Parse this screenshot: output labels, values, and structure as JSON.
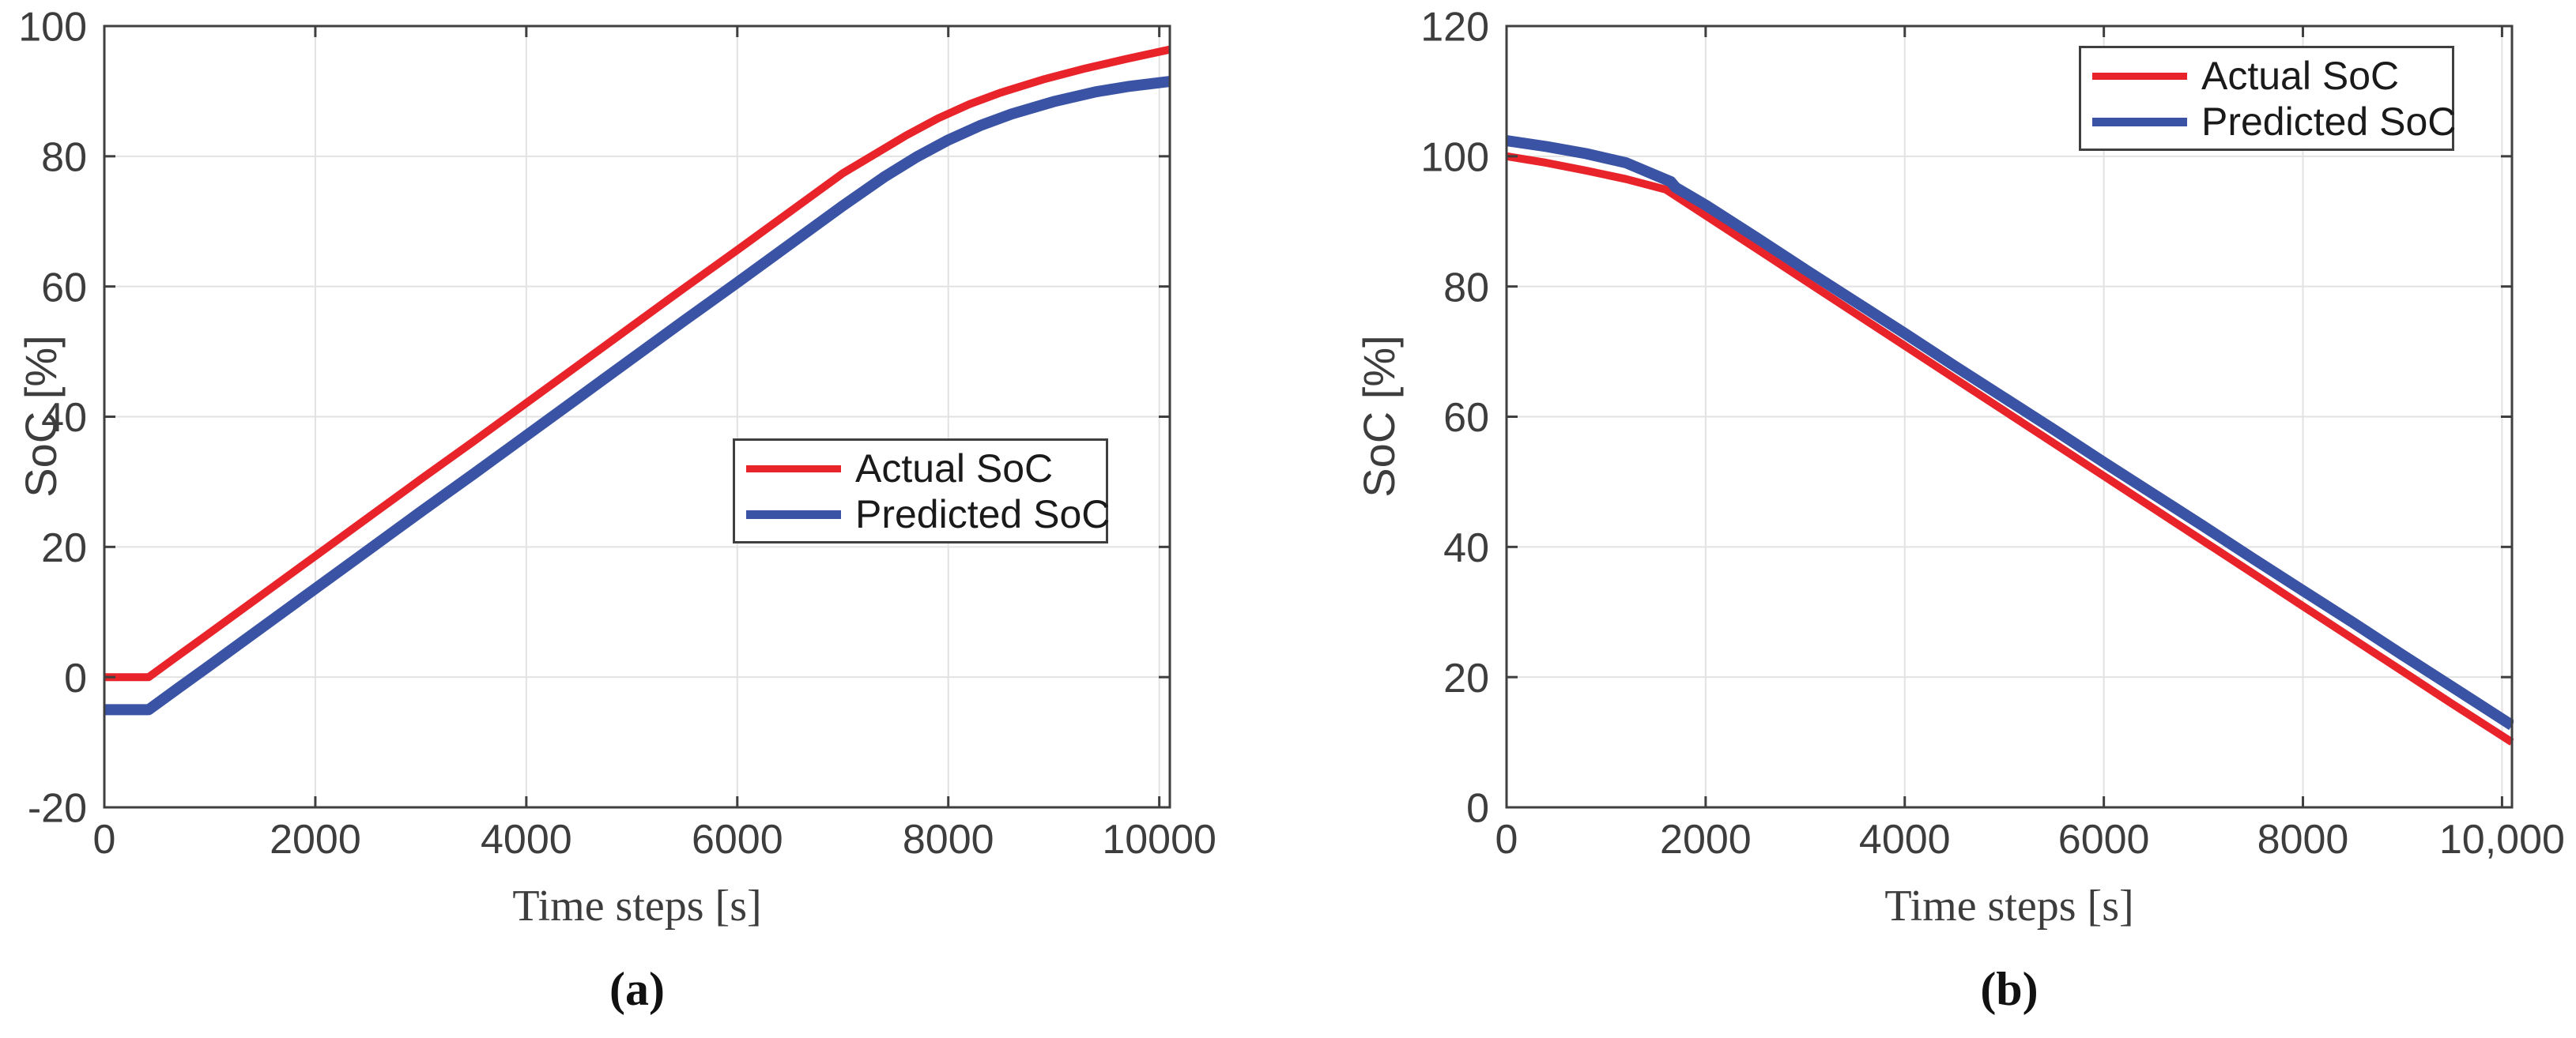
{
  "chart_data": [
    {
      "type": "line",
      "panel": "a",
      "caption": "(a)",
      "title": "",
      "xlabel": "Time steps [s]",
      "ylabel": "SoC [%]",
      "xlim": [
        0,
        10100
      ],
      "ylim": [
        -20,
        100
      ],
      "grid": true,
      "legend_position": "inside-middle-right",
      "xtick_values": [
        0,
        2000,
        4000,
        6000,
        8000,
        10000
      ],
      "xtick_labels": [
        "0",
        "2000",
        "4000",
        "6000",
        "8000",
        "10000"
      ],
      "ytick_values": [
        -20,
        0,
        20,
        40,
        60,
        80,
        100
      ],
      "ytick_labels": [
        "-20",
        "0",
        "20",
        "40",
        "60",
        "80",
        "100"
      ],
      "series": [
        {
          "name": "Actual SoC",
          "color": "#e8232a",
          "line_width": 10,
          "points": [
            [
              0,
              0
            ],
            [
              420,
              0
            ],
            [
              700,
              3.3
            ],
            [
              1000,
              6.8
            ],
            [
              1500,
              12.7
            ],
            [
              2000,
              18.6
            ],
            [
              2500,
              24.5
            ],
            [
              3000,
              30.4
            ],
            [
              3500,
              36.2
            ],
            [
              4000,
              42.1
            ],
            [
              4500,
              48.0
            ],
            [
              5000,
              53.9
            ],
            [
              5500,
              59.8
            ],
            [
              6000,
              65.6
            ],
            [
              6500,
              71.5
            ],
            [
              7000,
              77.4
            ],
            [
              7300,
              80.3
            ],
            [
              7600,
              83.2
            ],
            [
              7900,
              85.8
            ],
            [
              8200,
              88.0
            ],
            [
              8500,
              89.8
            ],
            [
              8900,
              91.8
            ],
            [
              9300,
              93.5
            ],
            [
              9700,
              95.0
            ],
            [
              10100,
              96.4
            ]
          ]
        },
        {
          "name": "Predicted SoC",
          "color": "#3a53a4",
          "line_width": 14,
          "points": [
            [
              0,
              -5
            ],
            [
              420,
              -5
            ],
            [
              700,
              -1.7
            ],
            [
              1000,
              1.8
            ],
            [
              1500,
              7.7
            ],
            [
              2000,
              13.6
            ],
            [
              2500,
              19.5
            ],
            [
              3000,
              25.4
            ],
            [
              3500,
              31.2
            ],
            [
              4000,
              37.1
            ],
            [
              4500,
              43.0
            ],
            [
              5000,
              48.9
            ],
            [
              5500,
              54.8
            ],
            [
              6000,
              60.6
            ],
            [
              6500,
              66.5
            ],
            [
              7000,
              72.4
            ],
            [
              7400,
              76.9
            ],
            [
              7700,
              79.9
            ],
            [
              8000,
              82.5
            ],
            [
              8300,
              84.7
            ],
            [
              8600,
              86.5
            ],
            [
              9000,
              88.4
            ],
            [
              9400,
              89.9
            ],
            [
              9700,
              90.7
            ],
            [
              10100,
              91.5
            ]
          ]
        }
      ]
    },
    {
      "type": "line",
      "panel": "b",
      "caption": "(b)",
      "title": "",
      "xlabel": "Time steps [s]",
      "ylabel": "SoC [%]",
      "xlim": [
        0,
        10100
      ],
      "ylim": [
        0,
        120
      ],
      "grid": true,
      "legend_position": "inside-top-right",
      "xtick_values": [
        0,
        2000,
        4000,
        6000,
        8000,
        10000
      ],
      "xtick_labels": [
        "0",
        "2000",
        "4000",
        "6000",
        "8000",
        "10,000"
      ],
      "ytick_values": [
        0,
        20,
        40,
        60,
        80,
        100,
        120
      ],
      "ytick_labels": [
        "0",
        "20",
        "40",
        "60",
        "80",
        "100",
        "120"
      ],
      "series": [
        {
          "name": "Actual SoC",
          "color": "#e8232a",
          "line_width": 10,
          "points": [
            [
              0,
              100
            ],
            [
              400,
              99.0
            ],
            [
              800,
              97.8
            ],
            [
              1200,
              96.5
            ],
            [
              1600,
              94.9
            ],
            [
              2000,
              90.9
            ],
            [
              2500,
              85.9
            ],
            [
              3000,
              80.9
            ],
            [
              3500,
              75.9
            ],
            [
              4000,
              70.9
            ],
            [
              4500,
              65.9
            ],
            [
              5000,
              60.9
            ],
            [
              5500,
              55.9
            ],
            [
              6000,
              50.9
            ],
            [
              6500,
              45.9
            ],
            [
              7000,
              40.9
            ],
            [
              7500,
              35.9
            ],
            [
              8000,
              30.9
            ],
            [
              8500,
              25.9
            ],
            [
              9000,
              20.9
            ],
            [
              9500,
              15.9
            ],
            [
              10100,
              10.0
            ]
          ]
        },
        {
          "name": "Predicted SoC",
          "color": "#3a53a4",
          "line_width": 14,
          "points": [
            [
              0,
              102.4
            ],
            [
              400,
              101.5
            ],
            [
              800,
              100.4
            ],
            [
              1200,
              99.0
            ],
            [
              1650,
              96.1
            ],
            [
              1700,
              95.2
            ],
            [
              2000,
              92.5
            ],
            [
              2500,
              87.6
            ],
            [
              3000,
              82.6
            ],
            [
              3500,
              77.7
            ],
            [
              4000,
              72.8
            ],
            [
              4500,
              67.8
            ],
            [
              5000,
              62.9
            ],
            [
              5500,
              58.0
            ],
            [
              6000,
              53.0
            ],
            [
              6500,
              48.1
            ],
            [
              7000,
              43.2
            ],
            [
              7500,
              38.2
            ],
            [
              8000,
              33.3
            ],
            [
              8500,
              28.4
            ],
            [
              9000,
              23.4
            ],
            [
              9500,
              18.5
            ],
            [
              10100,
              12.6
            ]
          ]
        }
      ]
    }
  ],
  "style": {
    "frame_color": "#3f3f3f",
    "grid_color": "#e2e2e2",
    "tick_label_color": "#3d3d3d",
    "background": "#ffffff"
  }
}
